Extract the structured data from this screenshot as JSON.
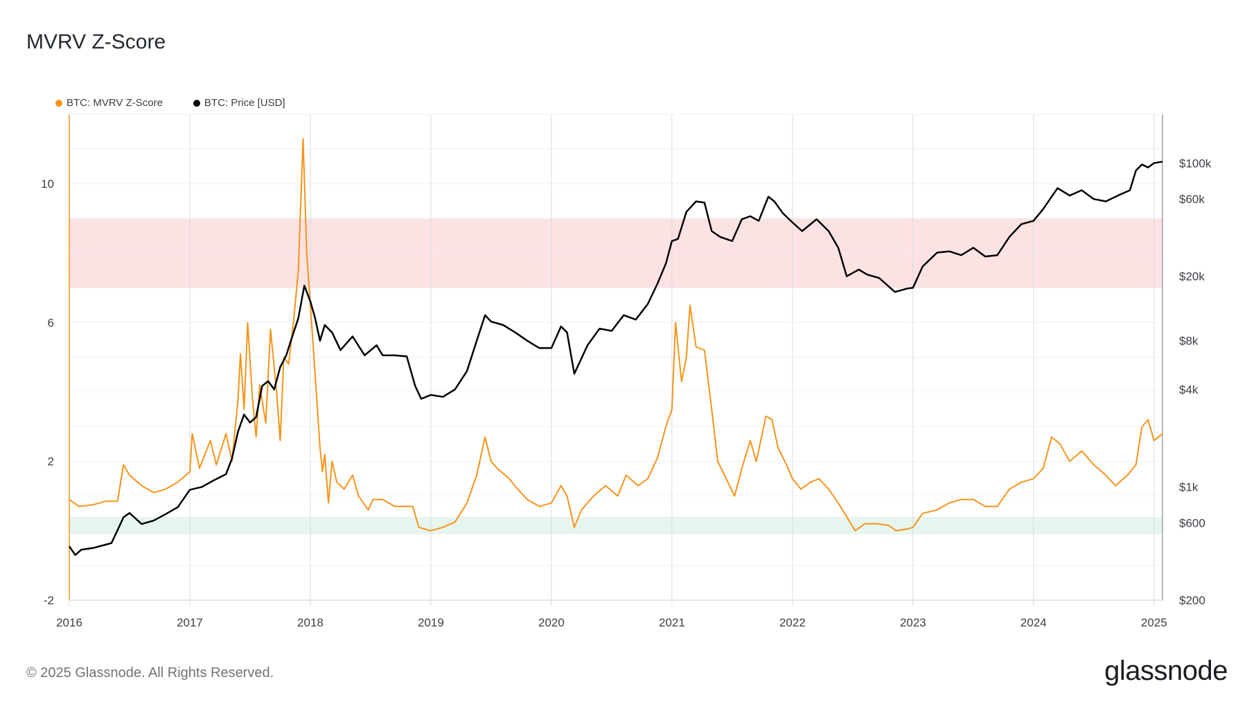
{
  "header": {
    "title": "MVRV Z-Score"
  },
  "legend": {
    "items": [
      {
        "label": "BTC: MVRV Z-Score",
        "color": "#f7931a"
      },
      {
        "label": "BTC: Price [USD]",
        "color": "#000000"
      }
    ]
  },
  "footer": {
    "copyright": "© 2025 Glassnode. All Rights Reserved.",
    "brand": "glassnode"
  },
  "chart_data": {
    "type": "line",
    "title": "MVRV Z-Score",
    "x_ticks": [
      "2016",
      "2017",
      "2018",
      "2019",
      "2020",
      "2021",
      "2022",
      "2023",
      "2024",
      "2025"
    ],
    "x_range": [
      2016.0,
      2025.07
    ],
    "left_axis": {
      "ticks": [
        10,
        6,
        2,
        -2
      ],
      "tick_labels": [
        "10",
        "6",
        "2",
        "-2"
      ],
      "range": [
        -2,
        12
      ]
    },
    "right_axis": {
      "scale": "log",
      "range": [
        200,
        200000
      ],
      "ticks": [
        100000,
        60000,
        20000,
        8000,
        4000,
        1000,
        600,
        200
      ],
      "tick_labels": [
        "$100k",
        "$60k",
        "$20k",
        "$8k",
        "$4k",
        "$1k",
        "$600",
        "$200"
      ]
    },
    "bands": [
      {
        "name": "red-zone",
        "from": 7.0,
        "to": 9.0,
        "color": "#fde2e4"
      },
      {
        "name": "green-zone",
        "from": -0.1,
        "to": 0.4,
        "color": "#e6f6ee"
      }
    ],
    "grid": true,
    "legend_position": "top-left",
    "series": [
      {
        "name": "BTC: MVRV Z-Score",
        "axis": "left",
        "color": "#f7931a",
        "points": [
          [
            2016.0,
            0.9
          ],
          [
            2016.08,
            0.7
          ],
          [
            2016.2,
            0.75
          ],
          [
            2016.3,
            0.85
          ],
          [
            2016.4,
            0.85
          ],
          [
            2016.45,
            1.9
          ],
          [
            2016.5,
            1.6
          ],
          [
            2016.6,
            1.3
          ],
          [
            2016.7,
            1.1
          ],
          [
            2016.8,
            1.2
          ],
          [
            2016.9,
            1.4
          ],
          [
            2017.0,
            1.7
          ],
          [
            2017.02,
            2.8
          ],
          [
            2017.08,
            1.8
          ],
          [
            2017.17,
            2.6
          ],
          [
            2017.22,
            1.9
          ],
          [
            2017.3,
            2.8
          ],
          [
            2017.35,
            2.0
          ],
          [
            2017.4,
            3.8
          ],
          [
            2017.42,
            5.1
          ],
          [
            2017.45,
            3.5
          ],
          [
            2017.48,
            6.0
          ],
          [
            2017.52,
            3.8
          ],
          [
            2017.55,
            2.7
          ],
          [
            2017.58,
            4.2
          ],
          [
            2017.63,
            3.1
          ],
          [
            2017.67,
            5.8
          ],
          [
            2017.72,
            4.0
          ],
          [
            2017.75,
            2.6
          ],
          [
            2017.78,
            5.0
          ],
          [
            2017.82,
            4.8
          ],
          [
            2017.86,
            6.0
          ],
          [
            2017.9,
            7.5
          ],
          [
            2017.94,
            11.3
          ],
          [
            2017.97,
            8.0
          ],
          [
            2018.0,
            6.5
          ],
          [
            2018.04,
            4.5
          ],
          [
            2018.08,
            2.4
          ],
          [
            2018.1,
            1.7
          ],
          [
            2018.12,
            2.2
          ],
          [
            2018.15,
            0.8
          ],
          [
            2018.18,
            2.0
          ],
          [
            2018.22,
            1.4
          ],
          [
            2018.28,
            1.2
          ],
          [
            2018.35,
            1.6
          ],
          [
            2018.4,
            1.0
          ],
          [
            2018.48,
            0.6
          ],
          [
            2018.52,
            0.9
          ],
          [
            2018.6,
            0.9
          ],
          [
            2018.7,
            0.7
          ],
          [
            2018.78,
            0.7
          ],
          [
            2018.85,
            0.7
          ],
          [
            2018.9,
            0.1
          ],
          [
            2019.0,
            0.0
          ],
          [
            2019.1,
            0.1
          ],
          [
            2019.2,
            0.25
          ],
          [
            2019.3,
            0.8
          ],
          [
            2019.38,
            1.6
          ],
          [
            2019.45,
            2.7
          ],
          [
            2019.5,
            2.0
          ],
          [
            2019.55,
            1.8
          ],
          [
            2019.65,
            1.5
          ],
          [
            2019.72,
            1.2
          ],
          [
            2019.8,
            0.9
          ],
          [
            2019.9,
            0.7
          ],
          [
            2020.0,
            0.8
          ],
          [
            2020.08,
            1.3
          ],
          [
            2020.13,
            1.0
          ],
          [
            2020.19,
            0.1
          ],
          [
            2020.25,
            0.6
          ],
          [
            2020.35,
            1.0
          ],
          [
            2020.45,
            1.3
          ],
          [
            2020.55,
            1.0
          ],
          [
            2020.62,
            1.6
          ],
          [
            2020.72,
            1.3
          ],
          [
            2020.8,
            1.5
          ],
          [
            2020.88,
            2.1
          ],
          [
            2020.95,
            3.0
          ],
          [
            2021.0,
            3.5
          ],
          [
            2021.03,
            6.0
          ],
          [
            2021.08,
            4.3
          ],
          [
            2021.12,
            5.0
          ],
          [
            2021.15,
            6.5
          ],
          [
            2021.2,
            5.3
          ],
          [
            2021.27,
            5.2
          ],
          [
            2021.33,
            3.5
          ],
          [
            2021.38,
            2.0
          ],
          [
            2021.45,
            1.5
          ],
          [
            2021.52,
            1.0
          ],
          [
            2021.58,
            1.8
          ],
          [
            2021.65,
            2.6
          ],
          [
            2021.7,
            2.0
          ],
          [
            2021.78,
            3.3
          ],
          [
            2021.83,
            3.2
          ],
          [
            2021.88,
            2.4
          ],
          [
            2021.95,
            1.9
          ],
          [
            2022.0,
            1.5
          ],
          [
            2022.07,
            1.2
          ],
          [
            2022.15,
            1.4
          ],
          [
            2022.22,
            1.5
          ],
          [
            2022.3,
            1.2
          ],
          [
            2022.38,
            0.8
          ],
          [
            2022.45,
            0.4
          ],
          [
            2022.52,
            0.0
          ],
          [
            2022.6,
            0.2
          ],
          [
            2022.7,
            0.2
          ],
          [
            2022.8,
            0.15
          ],
          [
            2022.86,
            0.0
          ],
          [
            2022.95,
            0.05
          ],
          [
            2023.0,
            0.1
          ],
          [
            2023.08,
            0.5
          ],
          [
            2023.2,
            0.6
          ],
          [
            2023.3,
            0.8
          ],
          [
            2023.4,
            0.9
          ],
          [
            2023.5,
            0.9
          ],
          [
            2023.6,
            0.7
          ],
          [
            2023.7,
            0.7
          ],
          [
            2023.8,
            1.2
          ],
          [
            2023.9,
            1.4
          ],
          [
            2024.0,
            1.5
          ],
          [
            2024.08,
            1.8
          ],
          [
            2024.15,
            2.7
          ],
          [
            2024.22,
            2.5
          ],
          [
            2024.3,
            2.0
          ],
          [
            2024.4,
            2.3
          ],
          [
            2024.5,
            1.9
          ],
          [
            2024.6,
            1.6
          ],
          [
            2024.68,
            1.3
          ],
          [
            2024.78,
            1.6
          ],
          [
            2024.85,
            1.9
          ],
          [
            2024.9,
            3.0
          ],
          [
            2024.95,
            3.2
          ],
          [
            2025.0,
            2.6
          ],
          [
            2025.07,
            2.8
          ]
        ]
      },
      {
        "name": "BTC: Price [USD]",
        "axis": "right",
        "color": "#000000",
        "points": [
          [
            2016.0,
            430
          ],
          [
            2016.05,
            380
          ],
          [
            2016.1,
            410
          ],
          [
            2016.2,
            420
          ],
          [
            2016.3,
            440
          ],
          [
            2016.35,
            450
          ],
          [
            2016.4,
            540
          ],
          [
            2016.45,
            650
          ],
          [
            2016.5,
            690
          ],
          [
            2016.6,
            590
          ],
          [
            2016.7,
            620
          ],
          [
            2016.8,
            680
          ],
          [
            2016.9,
            750
          ],
          [
            2017.0,
            960
          ],
          [
            2017.1,
            1000
          ],
          [
            2017.2,
            1100
          ],
          [
            2017.3,
            1200
          ],
          [
            2017.35,
            1500
          ],
          [
            2017.4,
            2200
          ],
          [
            2017.45,
            2800
          ],
          [
            2017.5,
            2500
          ],
          [
            2017.55,
            2700
          ],
          [
            2017.6,
            4200
          ],
          [
            2017.65,
            4500
          ],
          [
            2017.7,
            4000
          ],
          [
            2017.75,
            5500
          ],
          [
            2017.8,
            6500
          ],
          [
            2017.85,
            8500
          ],
          [
            2017.9,
            11000
          ],
          [
            2017.95,
            17500
          ],
          [
            2018.0,
            14000
          ],
          [
            2018.04,
            11000
          ],
          [
            2018.08,
            8000
          ],
          [
            2018.12,
            10000
          ],
          [
            2018.18,
            9000
          ],
          [
            2018.25,
            7000
          ],
          [
            2018.35,
            8500
          ],
          [
            2018.45,
            6500
          ],
          [
            2018.55,
            7500
          ],
          [
            2018.6,
            6500
          ],
          [
            2018.7,
            6500
          ],
          [
            2018.8,
            6400
          ],
          [
            2018.87,
            4200
          ],
          [
            2018.92,
            3500
          ],
          [
            2019.0,
            3700
          ],
          [
            2019.1,
            3600
          ],
          [
            2019.2,
            4000
          ],
          [
            2019.3,
            5200
          ],
          [
            2019.38,
            8000
          ],
          [
            2019.45,
            11500
          ],
          [
            2019.5,
            10500
          ],
          [
            2019.6,
            10000
          ],
          [
            2019.7,
            9000
          ],
          [
            2019.8,
            8000
          ],
          [
            2019.9,
            7200
          ],
          [
            2020.0,
            7200
          ],
          [
            2020.08,
            9800
          ],
          [
            2020.13,
            9000
          ],
          [
            2020.19,
            5000
          ],
          [
            2020.3,
            7500
          ],
          [
            2020.4,
            9500
          ],
          [
            2020.5,
            9200
          ],
          [
            2020.6,
            11500
          ],
          [
            2020.7,
            10800
          ],
          [
            2020.8,
            13500
          ],
          [
            2020.88,
            18000
          ],
          [
            2020.95,
            24000
          ],
          [
            2021.0,
            33000
          ],
          [
            2021.05,
            34000
          ],
          [
            2021.12,
            50000
          ],
          [
            2021.2,
            58000
          ],
          [
            2021.27,
            57000
          ],
          [
            2021.33,
            38000
          ],
          [
            2021.4,
            35000
          ],
          [
            2021.5,
            33000
          ],
          [
            2021.58,
            45000
          ],
          [
            2021.65,
            47000
          ],
          [
            2021.72,
            44000
          ],
          [
            2021.8,
            62000
          ],
          [
            2021.85,
            58000
          ],
          [
            2021.92,
            49000
          ],
          [
            2022.0,
            43000
          ],
          [
            2022.08,
            38000
          ],
          [
            2022.2,
            45000
          ],
          [
            2022.3,
            38000
          ],
          [
            2022.38,
            30000
          ],
          [
            2022.45,
            20000
          ],
          [
            2022.55,
            22000
          ],
          [
            2022.62,
            20500
          ],
          [
            2022.72,
            19500
          ],
          [
            2022.85,
            16000
          ],
          [
            2022.95,
            16800
          ],
          [
            2023.0,
            17000
          ],
          [
            2023.08,
            23000
          ],
          [
            2023.2,
            28000
          ],
          [
            2023.3,
            28500
          ],
          [
            2023.4,
            27000
          ],
          [
            2023.5,
            30000
          ],
          [
            2023.6,
            26500
          ],
          [
            2023.7,
            27000
          ],
          [
            2023.8,
            35000
          ],
          [
            2023.9,
            42000
          ],
          [
            2024.0,
            44000
          ],
          [
            2024.08,
            52000
          ],
          [
            2024.15,
            62000
          ],
          [
            2024.2,
            70000
          ],
          [
            2024.3,
            63000
          ],
          [
            2024.4,
            68000
          ],
          [
            2024.5,
            60000
          ],
          [
            2024.6,
            58000
          ],
          [
            2024.7,
            63000
          ],
          [
            2024.8,
            68000
          ],
          [
            2024.85,
            90000
          ],
          [
            2024.9,
            98000
          ],
          [
            2024.95,
            94000
          ],
          [
            2025.0,
            100000
          ],
          [
            2025.07,
            102000
          ]
        ]
      }
    ]
  }
}
